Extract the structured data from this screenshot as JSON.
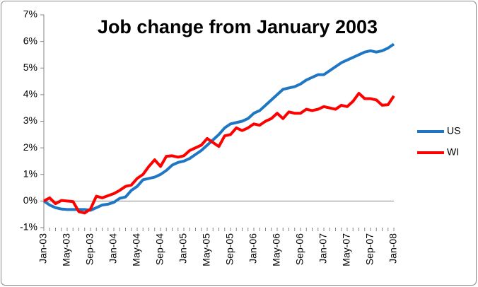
{
  "chart_data": {
    "type": "line",
    "title": "Job change from January 2003",
    "categories": [
      "Jan-03",
      null,
      null,
      null,
      "May-03",
      null,
      null,
      null,
      "Sep-03",
      null,
      null,
      null,
      "Jan-04",
      null,
      null,
      null,
      "May-04",
      null,
      null,
      null,
      "Sep-04",
      null,
      null,
      null,
      "Jan-05",
      null,
      null,
      null,
      "May-05",
      null,
      null,
      null,
      "Sep-05",
      null,
      null,
      null,
      "Jan-06",
      null,
      null,
      null,
      "May-06",
      null,
      null,
      null,
      "Sep-06",
      null,
      null,
      null,
      "Jan-07",
      null,
      null,
      null,
      "May-07",
      null,
      null,
      null,
      "Sep-07",
      null,
      null,
      null,
      "Jan-08"
    ],
    "series": [
      {
        "name": "US",
        "color": "#1f77c4",
        "values": [
          0,
          -0.15,
          -0.25,
          -0.3,
          -0.32,
          -0.32,
          -0.32,
          -0.32,
          -0.35,
          -0.25,
          -0.15,
          -0.12,
          -0.05,
          0.1,
          0.15,
          0.4,
          0.55,
          0.8,
          0.85,
          0.9,
          1.0,
          1.15,
          1.35,
          1.45,
          1.5,
          1.6,
          1.75,
          1.9,
          2.1,
          2.3,
          2.5,
          2.75,
          2.9,
          2.95,
          3.0,
          3.1,
          3.3,
          3.4,
          3.6,
          3.8,
          4.0,
          4.2,
          4.25,
          4.3,
          4.4,
          4.55,
          4.65,
          4.75,
          4.75,
          4.9,
          5.05,
          5.2,
          5.3,
          5.4,
          5.5,
          5.6,
          5.65,
          5.6,
          5.65,
          5.75,
          5.9
        ]
      },
      {
        "name": "WI",
        "color": "#ff0000",
        "values": [
          0,
          0.12,
          -0.1,
          0.02,
          0.0,
          -0.02,
          -0.4,
          -0.45,
          -0.3,
          0.18,
          0.12,
          0.2,
          0.28,
          0.4,
          0.55,
          0.6,
          0.85,
          1.0,
          1.3,
          1.55,
          1.3,
          1.68,
          1.7,
          1.65,
          1.7,
          1.9,
          2.0,
          2.1,
          2.35,
          2.2,
          2.05,
          2.45,
          2.5,
          2.75,
          2.65,
          2.75,
          2.9,
          2.85,
          3.0,
          3.1,
          3.3,
          3.1,
          3.35,
          3.3,
          3.3,
          3.45,
          3.4,
          3.45,
          3.55,
          3.5,
          3.45,
          3.6,
          3.55,
          3.75,
          4.05,
          3.85,
          3.85,
          3.8,
          3.6,
          3.62,
          3.95
        ]
      }
    ],
    "ylim": [
      -1,
      7
    ],
    "yticks": [
      {
        "value": -1,
        "label": "-1%"
      },
      {
        "value": 0,
        "label": "0%"
      },
      {
        "value": 1,
        "label": "1%"
      },
      {
        "value": 2,
        "label": "2%"
      },
      {
        "value": 3,
        "label": "3%"
      },
      {
        "value": 4,
        "label": "4%"
      },
      {
        "value": 5,
        "label": "5%"
      },
      {
        "value": 6,
        "label": "6%"
      },
      {
        "value": 7,
        "label": "7%"
      }
    ],
    "grid": false,
    "legend": "right"
  }
}
